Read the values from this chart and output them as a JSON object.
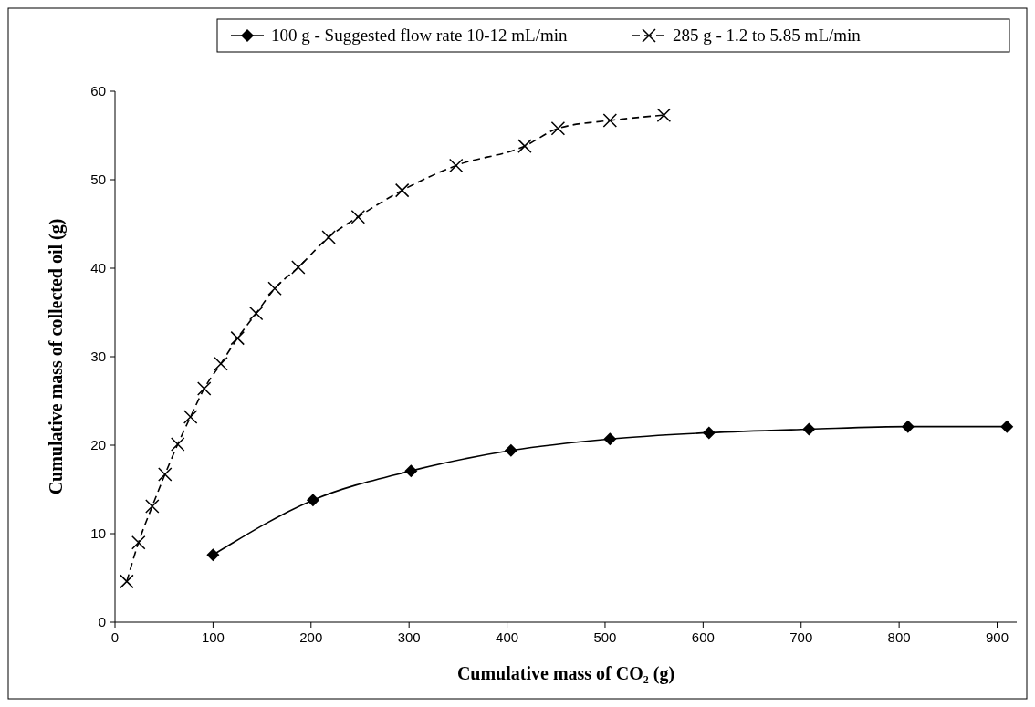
{
  "chart_data": {
    "type": "line",
    "xlabel": "Cumulative mass of CO₂ (g)",
    "ylabel": "Cumulative mass of collected oil (g)",
    "xlim": [
      0,
      920
    ],
    "xticks": [
      0,
      100,
      200,
      300,
      400,
      500,
      600,
      700,
      800,
      900
    ],
    "ylim": [
      0,
      60
    ],
    "yticks": [
      0,
      10,
      20,
      30,
      40,
      50,
      60
    ],
    "grid": false,
    "legend": "top",
    "series": [
      {
        "name": "100 g - Suggested flow rate 10-12 mL/min",
        "color": "#000000",
        "marker": "diamond",
        "line_style": "solid",
        "x": [
          100,
          202,
          302,
          404,
          505,
          606,
          708,
          809,
          910
        ],
        "values": [
          7.6,
          13.8,
          17.1,
          19.4,
          20.7,
          21.4,
          21.8,
          22.1,
          22.1
        ]
      },
      {
        "name": "285 g - 1.2 to 5.85 mL/min",
        "color": "#000000",
        "marker": "cross",
        "line_style": "dashed",
        "x": [
          12,
          24,
          38,
          51,
          64,
          77,
          91,
          108,
          125,
          144,
          163,
          187,
          218,
          248,
          293,
          348,
          418,
          452,
          505,
          560
        ],
        "values": [
          4.6,
          9.0,
          13.1,
          16.7,
          20.1,
          23.2,
          26.4,
          29.2,
          32.1,
          34.9,
          37.7,
          40.1,
          43.5,
          45.8,
          48.8,
          51.6,
          53.8,
          55.8,
          56.7,
          57.3
        ]
      }
    ]
  }
}
